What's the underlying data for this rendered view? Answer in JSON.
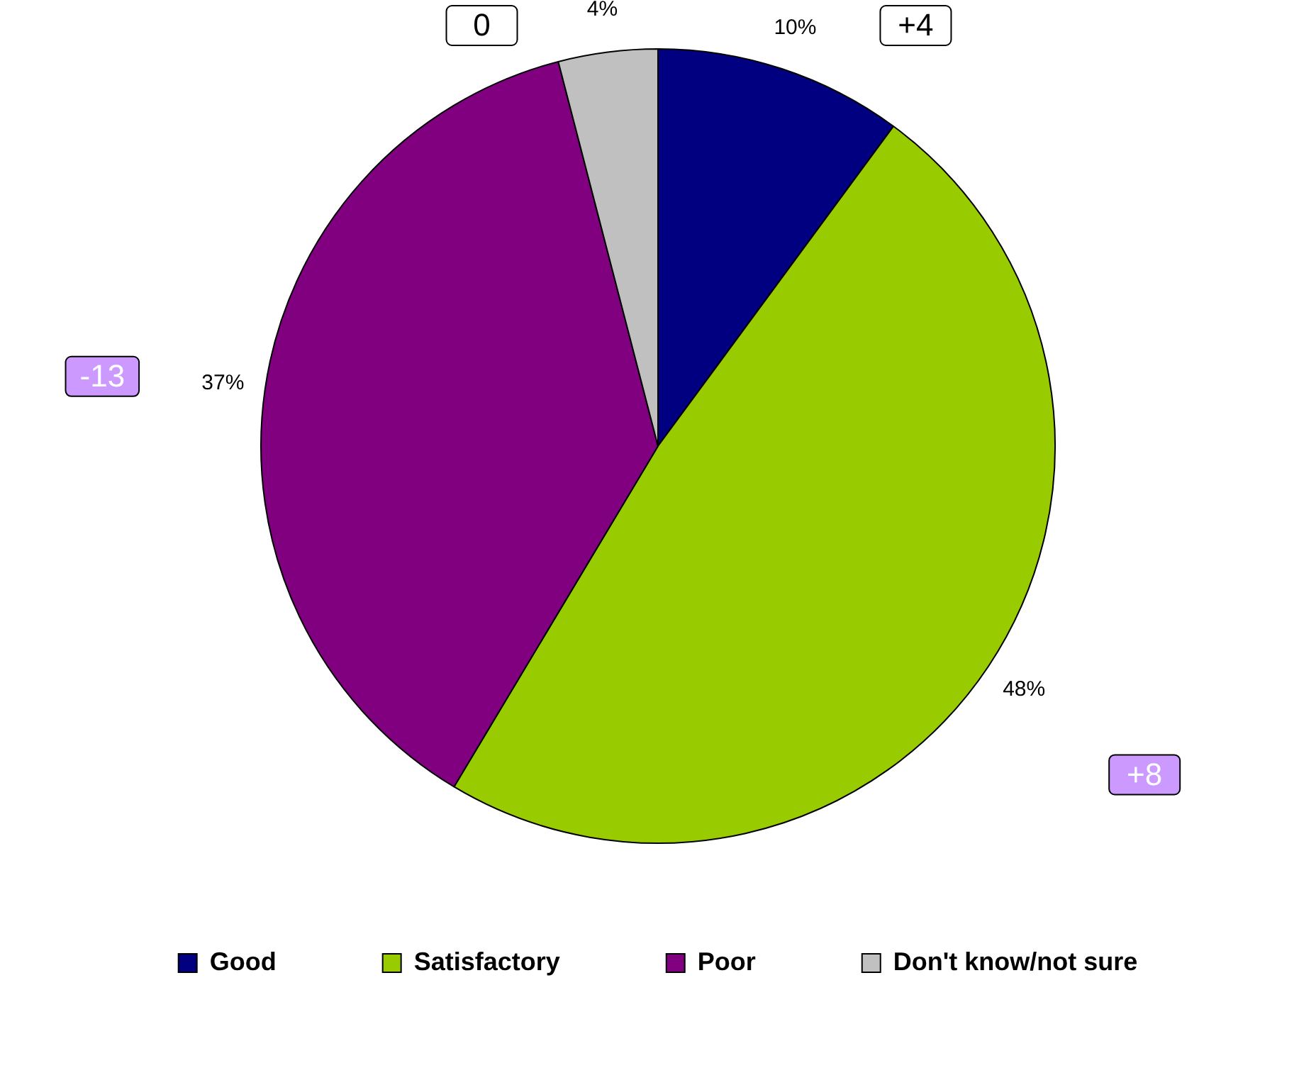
{
  "chart_data": {
    "type": "pie",
    "categories": [
      "Good",
      "Satisfactory",
      "Poor",
      "Don't know/not sure"
    ],
    "values": [
      10,
      48,
      37,
      4
    ],
    "colors": [
      "#000080",
      "#99cc00",
      "#800080",
      "#c0c0c0"
    ],
    "value_labels": [
      "10%",
      "48%",
      "37%",
      "4%"
    ],
    "annotations": [
      {
        "text": "+4",
        "x": "Good"
      },
      {
        "text": "+8",
        "x": "Satisfactory"
      },
      {
        "text": "-13",
        "x": "Poor"
      },
      {
        "text": "0",
        "x": "Don't know/not sure"
      }
    ],
    "legend": "bottom"
  }
}
